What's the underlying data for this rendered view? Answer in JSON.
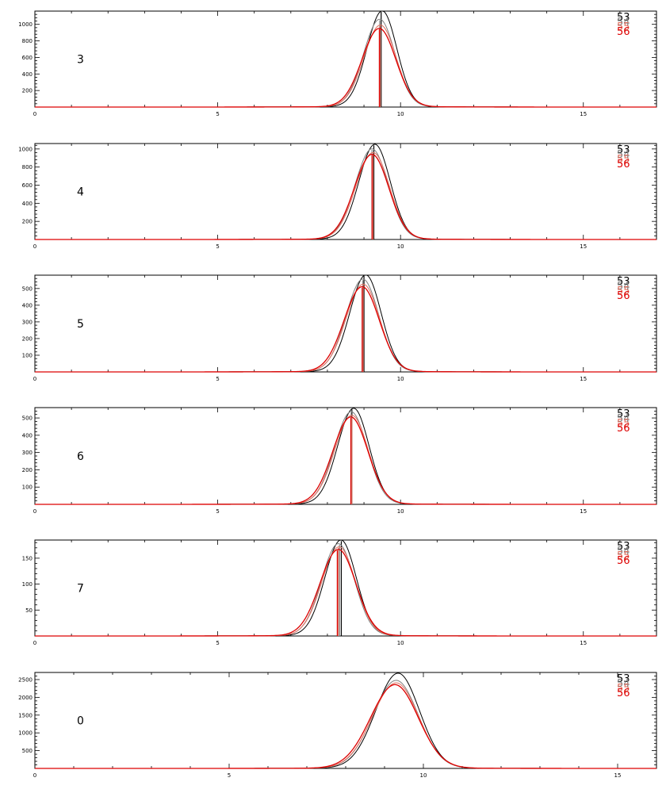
{
  "figure": {
    "legend": [
      {
        "label": "53",
        "color": "#000000"
      },
      {
        "label": "54",
        "color": "#808080"
      },
      {
        "label": "55",
        "color": "#e07060"
      },
      {
        "label": "56",
        "color": "#dd0000"
      }
    ]
  },
  "chart_data": [
    {
      "type": "line",
      "panel_label": "3",
      "xlim": [
        0,
        17
      ],
      "ylim": [
        0,
        1160
      ],
      "xticks": [
        0,
        5,
        10,
        15
      ],
      "yticks": [
        200,
        400,
        600,
        800,
        1000
      ],
      "grid": false,
      "legend_position": "top-right",
      "series": [
        {
          "name": "53",
          "color": "#000000",
          "peak_x": 9.5,
          "peak_y": 1150,
          "width": 0.4,
          "marker_x": 9.47
        },
        {
          "name": "54",
          "color": "#808080",
          "peak_x": 9.43,
          "peak_y": 1050,
          "width": 0.42,
          "marker_x": 9.43
        },
        {
          "name": "55",
          "color": "#e07060",
          "peak_x": 9.45,
          "peak_y": 980,
          "width": 0.43,
          "marker_x": 9.45
        },
        {
          "name": "56",
          "color": "#dd0000",
          "peak_x": 9.42,
          "peak_y": 940,
          "width": 0.45,
          "marker_x": 9.42
        }
      ]
    },
    {
      "type": "line",
      "panel_label": "4",
      "xlim": [
        0,
        17
      ],
      "ylim": [
        0,
        1060
      ],
      "xticks": [
        0,
        5,
        10,
        15
      ],
      "yticks": [
        200,
        400,
        600,
        800,
        1000
      ],
      "grid": false,
      "legend_position": "top-right",
      "series": [
        {
          "name": "53",
          "color": "#000000",
          "peak_x": 9.3,
          "peak_y": 1040,
          "width": 0.42,
          "marker_x": 9.27
        },
        {
          "name": "54",
          "color": "#808080",
          "peak_x": 9.22,
          "peak_y": 990,
          "width": 0.44,
          "marker_x": 9.22
        },
        {
          "name": "55",
          "color": "#e07060",
          "peak_x": 9.25,
          "peak_y": 950,
          "width": 0.45,
          "marker_x": 9.25
        },
        {
          "name": "56",
          "color": "#dd0000",
          "peak_x": 9.22,
          "peak_y": 930,
          "width": 0.46,
          "marker_x": 9.22
        }
      ]
    },
    {
      "type": "line",
      "panel_label": "5",
      "xlim": [
        0,
        17
      ],
      "ylim": [
        0,
        580
      ],
      "xticks": [
        0,
        5,
        10,
        15
      ],
      "yticks": [
        100,
        200,
        300,
        400,
        500
      ],
      "grid": false,
      "legend_position": "top-right",
      "series": [
        {
          "name": "53",
          "color": "#000000",
          "peak_x": 9.05,
          "peak_y": 575,
          "width": 0.42,
          "marker_x": 9.0
        },
        {
          "name": "54",
          "color": "#808080",
          "peak_x": 8.97,
          "peak_y": 550,
          "width": 0.44,
          "marker_x": 8.97
        },
        {
          "name": "55",
          "color": "#e07060",
          "peak_x": 8.98,
          "peak_y": 520,
          "width": 0.45,
          "marker_x": 8.98
        },
        {
          "name": "56",
          "color": "#dd0000",
          "peak_x": 8.95,
          "peak_y": 505,
          "width": 0.47,
          "marker_x": 8.95
        }
      ]
    },
    {
      "type": "line",
      "panel_label": "6",
      "xlim": [
        0,
        17
      ],
      "ylim": [
        0,
        560
      ],
      "xticks": [
        0,
        5,
        10,
        15
      ],
      "yticks": [
        100,
        200,
        300,
        400,
        500
      ],
      "grid": false,
      "legend_position": "top-right",
      "series": [
        {
          "name": "53",
          "color": "#000000",
          "peak_x": 8.72,
          "peak_y": 550,
          "width": 0.42,
          "marker_x": 8.67
        },
        {
          "name": "54",
          "color": "#808080",
          "peak_x": 8.65,
          "peak_y": 530,
          "width": 0.44,
          "marker_x": 8.65
        },
        {
          "name": "55",
          "color": "#e07060",
          "peak_x": 8.67,
          "peak_y": 510,
          "width": 0.45,
          "marker_x": 8.67
        },
        {
          "name": "56",
          "color": "#dd0000",
          "peak_x": 8.64,
          "peak_y": 500,
          "width": 0.47,
          "marker_x": 8.64
        }
      ]
    },
    {
      "type": "line",
      "panel_label": "7",
      "xlim": [
        0,
        17
      ],
      "ylim": [
        0,
        185
      ],
      "xticks": [
        0,
        5,
        10,
        15
      ],
      "yticks": [
        50,
        100,
        150
      ],
      "grid": false,
      "legend_position": "top-right",
      "series": [
        {
          "name": "53",
          "color": "#000000",
          "peak_x": 8.37,
          "peak_y": 183,
          "width": 0.42,
          "marker_x": 8.38
        },
        {
          "name": "54",
          "color": "#808080",
          "peak_x": 8.3,
          "peak_y": 176,
          "width": 0.44,
          "marker_x": 8.33
        },
        {
          "name": "55",
          "color": "#e07060",
          "peak_x": 8.32,
          "peak_y": 170,
          "width": 0.45,
          "marker_x": 8.3
        },
        {
          "name": "56",
          "color": "#dd0000",
          "peak_x": 8.3,
          "peak_y": 165,
          "width": 0.48,
          "marker_x": 8.27
        }
      ]
    },
    {
      "type": "line",
      "panel_label": "0",
      "xlim": [
        0,
        16
      ],
      "ylim": [
        0,
        2700
      ],
      "xticks": [
        0,
        5,
        10,
        15
      ],
      "yticks": [
        500,
        1000,
        1500,
        2000,
        2500
      ],
      "grid": false,
      "legend_position": "top-right",
      "series": [
        {
          "name": "53",
          "color": "#000000",
          "peak_x": 9.35,
          "peak_y": 2650,
          "width": 0.55
        },
        {
          "name": "54",
          "color": "#808080",
          "peak_x": 9.3,
          "peak_y": 2450,
          "width": 0.57
        },
        {
          "name": "55",
          "color": "#e07060",
          "peak_x": 9.3,
          "peak_y": 2380,
          "width": 0.58
        },
        {
          "name": "56",
          "color": "#dd0000",
          "peak_x": 9.27,
          "peak_y": 2330,
          "width": 0.6
        }
      ]
    }
  ]
}
